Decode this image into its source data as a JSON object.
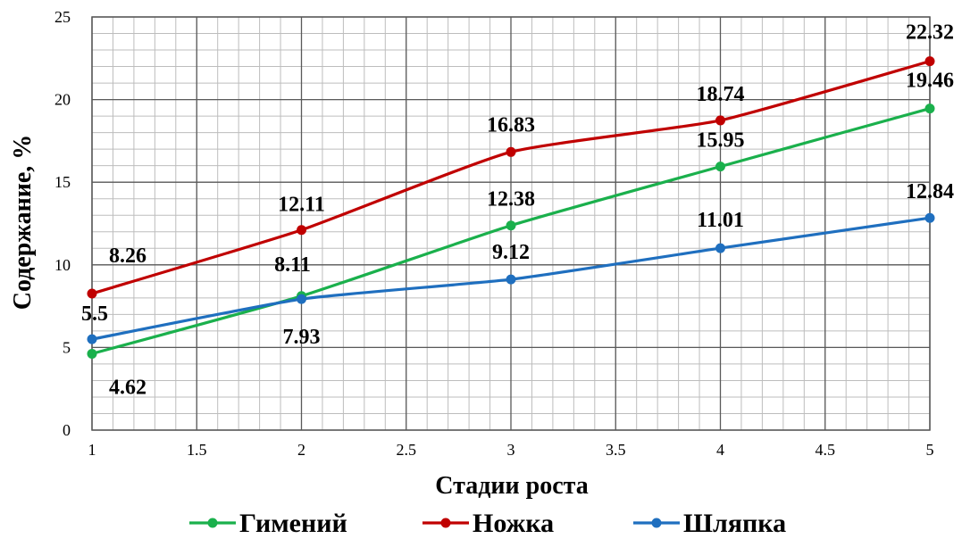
{
  "chart_data": {
    "type": "line",
    "xlabel": "Стадии роста",
    "ylabel": "Содержание, %",
    "x": [
      1,
      2,
      3,
      4,
      5
    ],
    "xlim": [
      1,
      5
    ],
    "ylim": [
      0,
      25
    ],
    "x_ticks": [
      "1",
      "1.5",
      "2",
      "2.5",
      "3",
      "3.5",
      "4",
      "4.5",
      "5"
    ],
    "y_ticks": [
      "0",
      "5",
      "10",
      "15",
      "20",
      "25"
    ],
    "grid": true,
    "legend_position": "bottom",
    "series": [
      {
        "name": "Гимений",
        "color": "#1ab04c",
        "values": [
          4.62,
          8.11,
          12.38,
          15.95,
          19.46
        ],
        "labels": [
          "4.62",
          "8.11",
          "12.38",
          "15.95",
          "19.46"
        ]
      },
      {
        "name": "Ножка",
        "color": "#c00000",
        "values": [
          8.26,
          12.11,
          16.83,
          18.74,
          22.32
        ],
        "labels": [
          "8.26",
          "12.11",
          "16.83",
          "18.74",
          "22.32"
        ]
      },
      {
        "name": "Шляпка",
        "color": "#1f6fbf",
        "values": [
          5.5,
          7.93,
          9.12,
          11.01,
          12.84
        ],
        "labels": [
          "5.5",
          "7.93",
          "9.12",
          "11.01",
          "12.84"
        ]
      }
    ]
  }
}
